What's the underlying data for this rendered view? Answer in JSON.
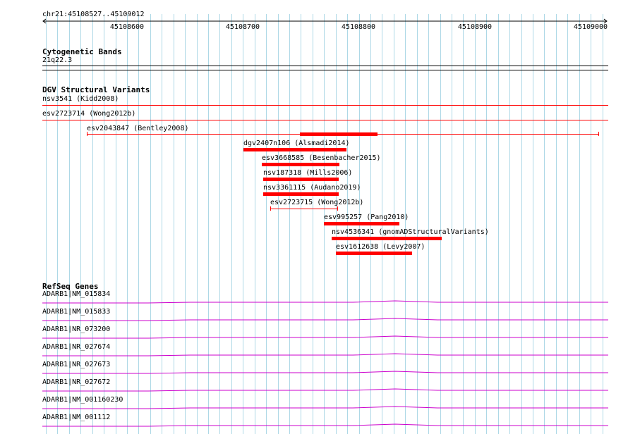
{
  "ruler": {
    "location": "chr21:45108527..45109012",
    "ticks": [
      "45108600",
      "45108700",
      "45108800",
      "45108900",
      "45109000"
    ]
  },
  "cytoband": {
    "title": "Cytogenetic Bands",
    "band": "21q22.3"
  },
  "dgv": {
    "title": "DGV Structural Variants",
    "features": [
      {
        "label": "nsv3541 (Kidd2008)"
      },
      {
        "label": "esv2723714 (Wong2012b)"
      },
      {
        "label": "esv2043847 (Bentley2008)"
      },
      {
        "label": "dgv2407n106 (Alsmadi2014)"
      },
      {
        "label": "esv3668585 (Besenbacher2015)"
      },
      {
        "label": "nsv187318 (Mills2006)"
      },
      {
        "label": "nsv3361115 (Audano2019)"
      },
      {
        "label": "esv2723715 (Wong2012b)"
      },
      {
        "label": "esv995257 (Pang2010)"
      },
      {
        "label": "nsv4536341 (gnomADStructuralVariants)"
      },
      {
        "label": "esv1612638 (Levy2007)"
      }
    ]
  },
  "refseq": {
    "title": "RefSeq Genes",
    "genes": [
      {
        "label": "ADARB1|NM_015834"
      },
      {
        "label": "ADARB1|NM_015833"
      },
      {
        "label": "ADARB1|NR_073200"
      },
      {
        "label": "ADARB1|NR_027674"
      },
      {
        "label": "ADARB1|NR_027673"
      },
      {
        "label": "ADARB1|NR_027672"
      },
      {
        "label": "ADARB1|NM_001160230"
      },
      {
        "label": "ADARB1|NM_001112"
      }
    ]
  },
  "colors": {
    "grid": "#add8e6",
    "variant": "#ff0000",
    "gene": "#cc00cc"
  }
}
